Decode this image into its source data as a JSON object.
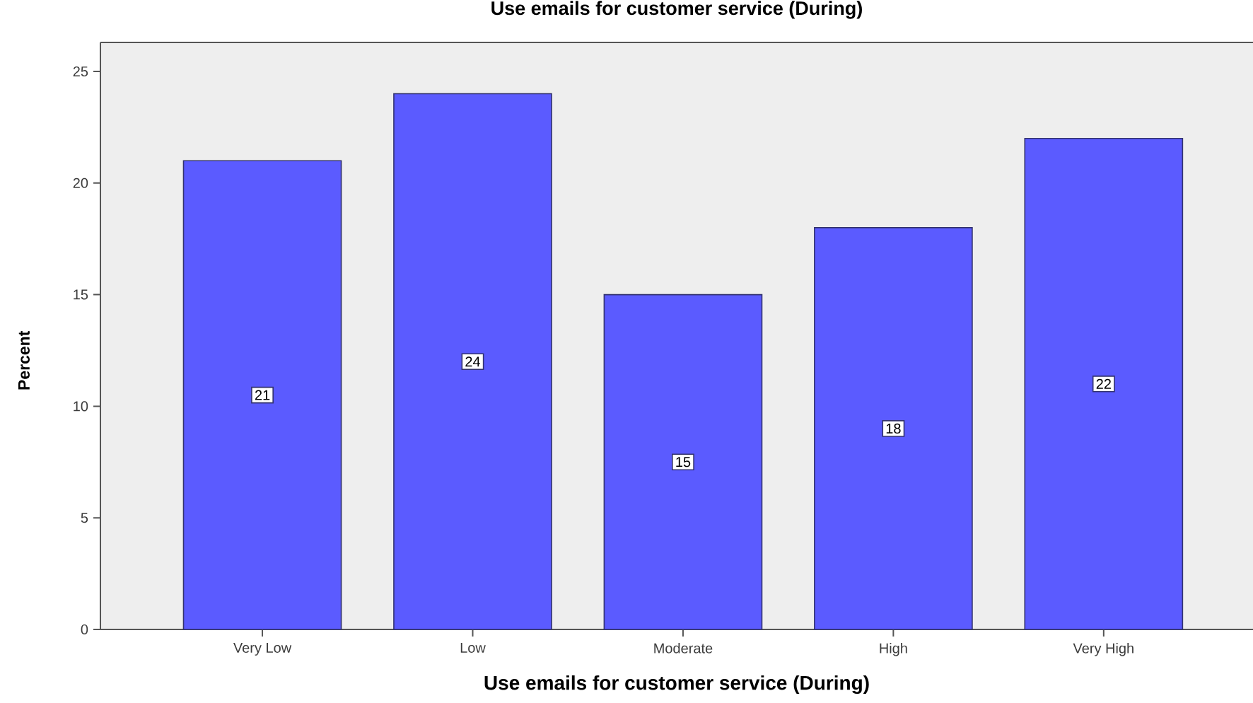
{
  "chart_data": {
    "type": "bar",
    "title": "Use emails for customer service (During)",
    "xlabel": "Use emails for customer service (During)",
    "ylabel": "Percent",
    "categories": [
      "Very Low",
      "Low",
      "Moderate",
      "High",
      "Very High"
    ],
    "values": [
      21,
      24,
      15,
      18,
      22
    ],
    "color": "#5b5bff",
    "ylim": [
      0,
      26.3
    ],
    "yticks": [
      0,
      5,
      10,
      15,
      20,
      25
    ],
    "data_labels": true
  }
}
